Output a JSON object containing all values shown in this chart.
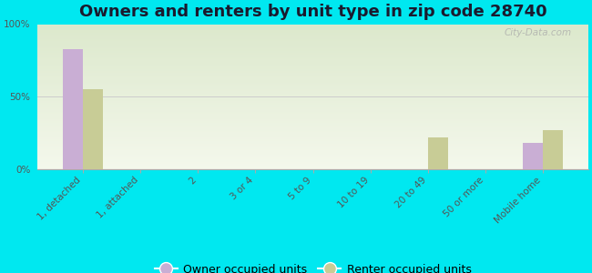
{
  "title": "Owners and renters by unit type in zip code 28740",
  "categories": [
    "1, detached",
    "1, attached",
    "2",
    "3 or 4",
    "5 to 9",
    "10 to 19",
    "20 to 49",
    "50 or more",
    "Mobile home"
  ],
  "owner_values": [
    83,
    0,
    0,
    0,
    0,
    0,
    0,
    0,
    18
  ],
  "renter_values": [
    55,
    0,
    0,
    0,
    0,
    0,
    22,
    0,
    27
  ],
  "owner_color": "#c9aed4",
  "renter_color": "#c8cc96",
  "background_outer": "#00e8f0",
  "grad_top": "#dce8cc",
  "grad_bottom": "#f4f8ec",
  "ylim": [
    0,
    100
  ],
  "yticks": [
    0,
    50,
    100
  ],
  "ytick_labels": [
    "0%",
    "50%",
    "100%"
  ],
  "bar_width": 0.35,
  "watermark": "City-Data.com",
  "legend_owner": "Owner occupied units",
  "legend_renter": "Renter occupied units",
  "title_fontsize": 13,
  "tick_fontsize": 7.5,
  "legend_fontsize": 9,
  "title_color": "#1a1a2e"
}
